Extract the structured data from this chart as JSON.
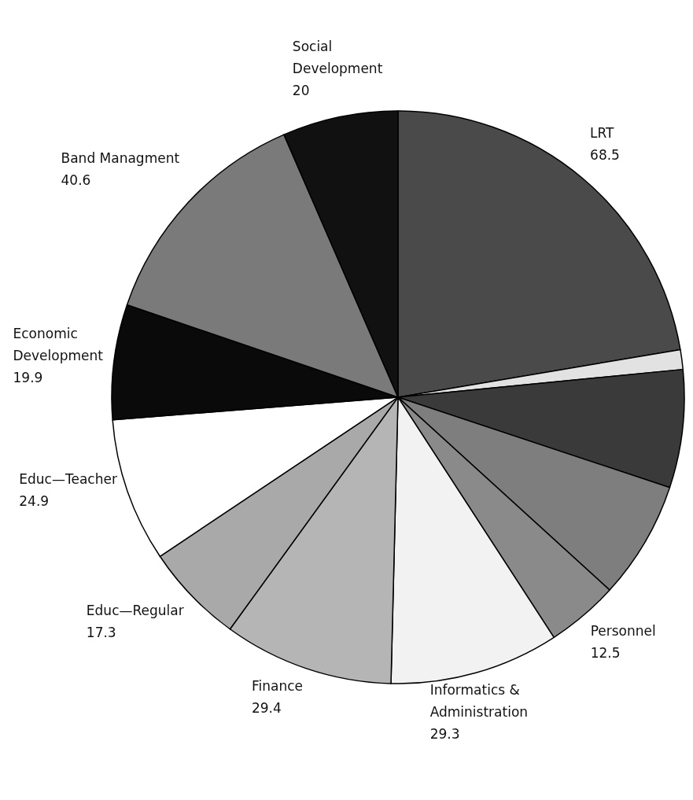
{
  "chart_data": {
    "type": "pie",
    "categories": [
      "LRT",
      null,
      null,
      null,
      "Personnel",
      "Informatics & Administration",
      "Finance",
      "Educ—Regular",
      "Educ—Teacher",
      "Economic Development",
      "Band Managment",
      "Social Development"
    ],
    "values": [
      68.5,
      3.4,
      20.4,
      20.4,
      12.5,
      29.3,
      29.4,
      17.3,
      24.9,
      19.9,
      40.6,
      20
    ],
    "value_labels": [
      "68.5",
      null,
      null,
      null,
      "12.5",
      "29.3",
      "29.4",
      "17.3",
      "24.9",
      "19.9",
      "40.6",
      "20"
    ],
    "colors": [
      "#4a4a4a",
      "#e2e2e2",
      "#3a3a3a",
      "#7e7e7e",
      "#8a8a8a",
      "#f2f2f2",
      "#b5b5b5",
      "#a9a9a9",
      "#ffffff",
      "#0a0a0a",
      "#7a7a7a",
      "#111111"
    ],
    "legend": false
  }
}
